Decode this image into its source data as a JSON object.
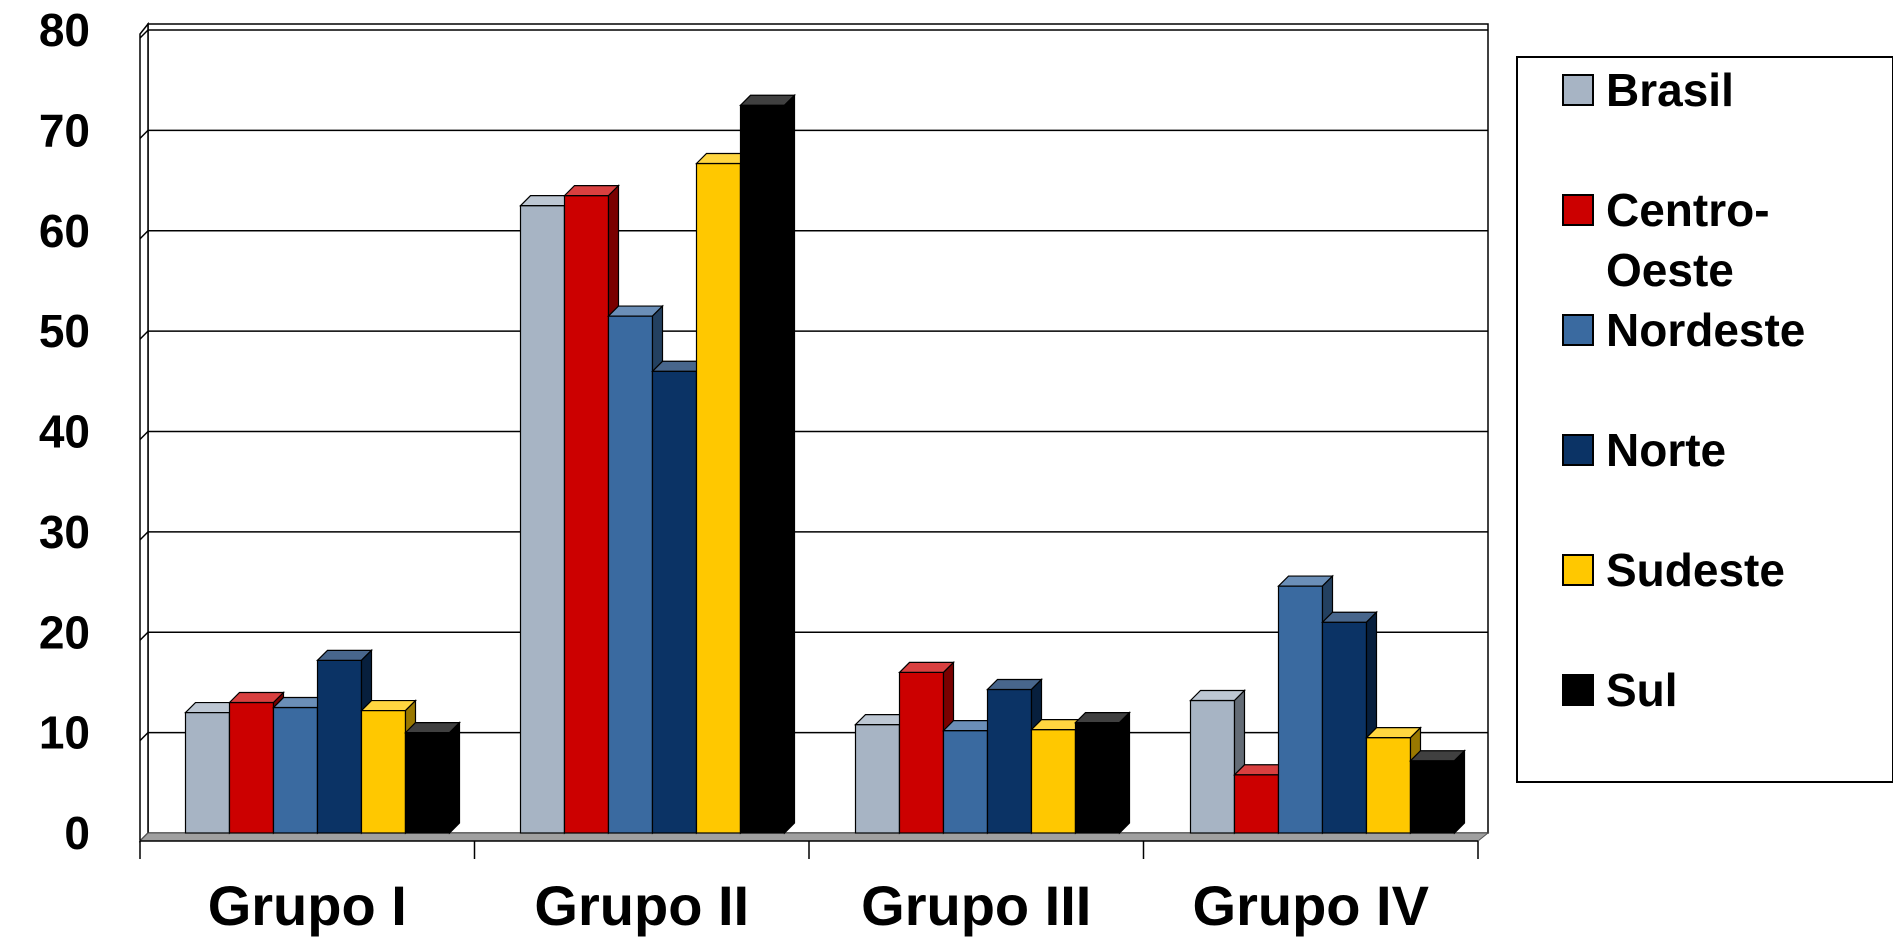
{
  "chart_data": {
    "type": "bar",
    "title": "",
    "xlabel": "",
    "ylabel": "",
    "ylim": [
      0,
      80
    ],
    "yticks": [
      "0",
      "10",
      "20",
      "30",
      "40",
      "50",
      "60",
      "70",
      "80"
    ],
    "grid": true,
    "legend_position": "right",
    "three_d": true,
    "categories": [
      "Grupo I",
      "Grupo II",
      "Grupo III",
      "Grupo IV"
    ],
    "series": [
      {
        "name": "Brasil",
        "color": "#a7b4c4",
        "values": [
          12,
          62.5,
          10.8,
          13.2
        ]
      },
      {
        "name": "Centro-Oeste",
        "color": "#cc0000",
        "values": [
          13,
          63.5,
          16,
          5.8
        ]
      },
      {
        "name": "Nordeste",
        "color": "#3a6aa0",
        "values": [
          12.5,
          51.5,
          10.2,
          24.6
        ]
      },
      {
        "name": "Norte",
        "color": "#0b3365",
        "values": [
          17.2,
          46,
          14.3,
          21
        ]
      },
      {
        "name": "Sudeste",
        "color": "#ffc800",
        "values": [
          12.2,
          66.7,
          10.3,
          9.5
        ]
      },
      {
        "name": "Sul",
        "color": "#000000",
        "values": [
          10,
          72.5,
          11,
          7.2
        ]
      }
    ],
    "legend_lines": [
      [
        "Brasil"
      ],
      [
        "Centro-",
        "Oeste"
      ],
      [
        "Nordeste"
      ],
      [
        "Norte"
      ],
      [
        "Sudeste"
      ],
      [
        "Sul"
      ]
    ]
  }
}
